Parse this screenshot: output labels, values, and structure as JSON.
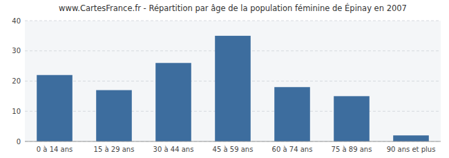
{
  "chart_data": {
    "type": "bar",
    "title": "www.CartesFrance.fr - Répartition par âge de la population féminine de Épinay en 2007",
    "categories": [
      "0 à 14 ans",
      "15 à 29 ans",
      "30 à 44 ans",
      "45 à 59 ans",
      "60 à 74 ans",
      "75 à 89 ans",
      "90 ans et plus"
    ],
    "values": [
      22,
      17,
      26,
      35,
      18,
      15,
      2
    ],
    "color": "#3d6d9e",
    "ylim": [
      0,
      40
    ],
    "yticks": [
      0,
      10,
      20,
      30,
      40
    ],
    "grid": true
  }
}
